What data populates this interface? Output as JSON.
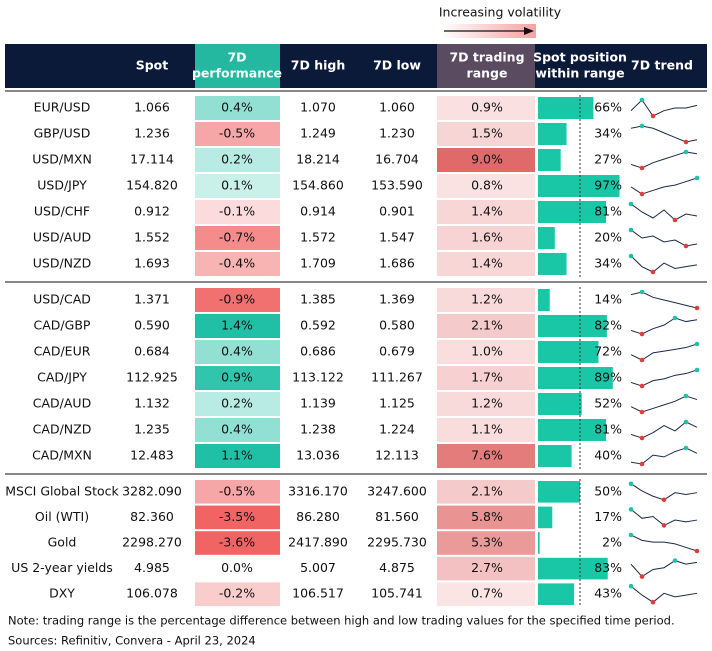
{
  "legend": "Increasing volatility",
  "table": {
    "header": [
      [
        "Spot"
      ],
      [
        "7D",
        "performance"
      ],
      [
        "7D high"
      ],
      [
        "7D low"
      ],
      [
        "7D trading",
        "range"
      ],
      [
        "Spot position",
        "within range"
      ],
      [
        "7D trend"
      ]
    ],
    "groups": [
      {
        "rows": [
          {
            "cells": [
              "EUR/USD",
              "1.066",
              "0.4%",
              "1.070",
              "1.060",
              "0.9%",
              "66%"
            ],
            "trend": [
              5,
              9,
              3,
              5,
              6,
              6,
              7
            ]
          },
          {
            "cells": [
              "GBP/USD",
              "1.236",
              "-0.5%",
              "1.249",
              "1.230",
              "1.5%",
              "34%"
            ],
            "trend": [
              8,
              9,
              8,
              6,
              4,
              2,
              3
            ]
          },
          {
            "cells": [
              "USD/MXN",
              "17.114",
              "0.2%",
              "18.214",
              "16.704",
              "9.0%",
              "27%"
            ],
            "trend": [
              3,
              1,
              4,
              6,
              8,
              10,
              9
            ]
          },
          {
            "cells": [
              "USD/JPY",
              "154.820",
              "0.1%",
              "154.860",
              "153.590",
              "0.8%",
              "97%"
            ],
            "trend": [
              5,
              1,
              3,
              5,
              6,
              8,
              10
            ]
          },
          {
            "cells": [
              "USD/CHF",
              "0.912",
              "-0.1%",
              "0.914",
              "0.901",
              "1.4%",
              "81%"
            ],
            "trend": [
              10,
              6,
              3,
              7,
              2,
              5,
              4
            ]
          },
          {
            "cells": [
              "USD/AUD",
              "1.552",
              "-0.7%",
              "1.572",
              "1.547",
              "1.6%",
              "20%"
            ],
            "trend": [
              10,
              6,
              7,
              4,
              5,
              2,
              3
            ]
          },
          {
            "cells": [
              "USD/NZD",
              "1.693",
              "-0.4%",
              "1.709",
              "1.686",
              "1.4%",
              "34%"
            ],
            "trend": [
              10,
              4,
              1,
              6,
              3,
              4,
              5
            ]
          }
        ]
      },
      {
        "rows": [
          {
            "cells": [
              "USD/CAD",
              "1.371",
              "-0.9%",
              "1.385",
              "1.369",
              "1.2%",
              "14%"
            ],
            "trend": [
              9,
              10,
              8,
              7,
              6,
              5,
              4
            ]
          },
          {
            "cells": [
              "CAD/GBP",
              "0.590",
              "1.4%",
              "0.592",
              "0.580",
              "2.1%",
              "82%"
            ],
            "trend": [
              3,
              1,
              4,
              6,
              10,
              8,
              9
            ]
          },
          {
            "cells": [
              "CAD/EUR",
              "0.684",
              "0.4%",
              "0.686",
              "0.679",
              "1.0%",
              "72%"
            ],
            "trend": [
              4,
              1,
              5,
              6,
              7,
              8,
              10
            ]
          },
          {
            "cells": [
              "CAD/JPY",
              "112.925",
              "0.9%",
              "113.122",
              "111.267",
              "1.7%",
              "89%"
            ],
            "trend": [
              3,
              1,
              4,
              5,
              7,
              8,
              10
            ]
          },
          {
            "cells": [
              "CAD/AUD",
              "1.132",
              "0.2%",
              "1.139",
              "1.125",
              "1.2%",
              "52%"
            ],
            "trend": [
              4,
              1,
              3,
              5,
              7,
              10,
              8
            ]
          },
          {
            "cells": [
              "CAD/NZD",
              "1.235",
              "0.4%",
              "1.238",
              "1.224",
              "1.1%",
              "81%"
            ],
            "trend": [
              3,
              1,
              4,
              8,
              5,
              10,
              7
            ]
          },
          {
            "cells": [
              "CAD/MXN",
              "12.483",
              "1.1%",
              "13.036",
              "12.113",
              "7.6%",
              "40%"
            ],
            "trend": [
              2,
              1,
              6,
              5,
              8,
              10,
              7
            ]
          }
        ]
      },
      {
        "rows": [
          {
            "cells": [
              "MSCI Global Stock",
              "3282.090",
              "-0.5%",
              "3316.170",
              "3247.600",
              "2.1%",
              "50%"
            ],
            "trend": [
              10,
              6,
              3,
              1,
              5,
              4,
              5
            ]
          },
          {
            "cells": [
              "Oil (WTI)",
              "82.360",
              "-3.5%",
              "86.280",
              "81.560",
              "5.8%",
              "17%"
            ],
            "trend": [
              10,
              5,
              6,
              1,
              4,
              3,
              4
            ]
          },
          {
            "cells": [
              "Gold",
              "2298.270",
              "-3.6%",
              "2417.890",
              "2295.730",
              "5.3%",
              "2%"
            ],
            "trend": [
              10,
              7,
              6,
              6,
              5,
              3,
              1
            ]
          },
          {
            "cells": [
              "US 2-year yields",
              "4.985",
              "0.0%",
              "5.007",
              "4.875",
              "2.7%",
              "83%"
            ],
            "trend": [
              8,
              1,
              5,
              6,
              10,
              8,
              9
            ]
          },
          {
            "cells": [
              "DXY",
              "106.078",
              "-0.2%",
              "106.517",
              "105.741",
              "0.7%",
              "43%"
            ],
            "trend": [
              10,
              5,
              1,
              6,
              4,
              5,
              6
            ]
          }
        ]
      }
    ]
  },
  "note": "Note: trading range is the percentage difference between high and low trading values for the specified time period.",
  "sources": "Sources: Refinitiv, Convera - April 23, 2024"
}
